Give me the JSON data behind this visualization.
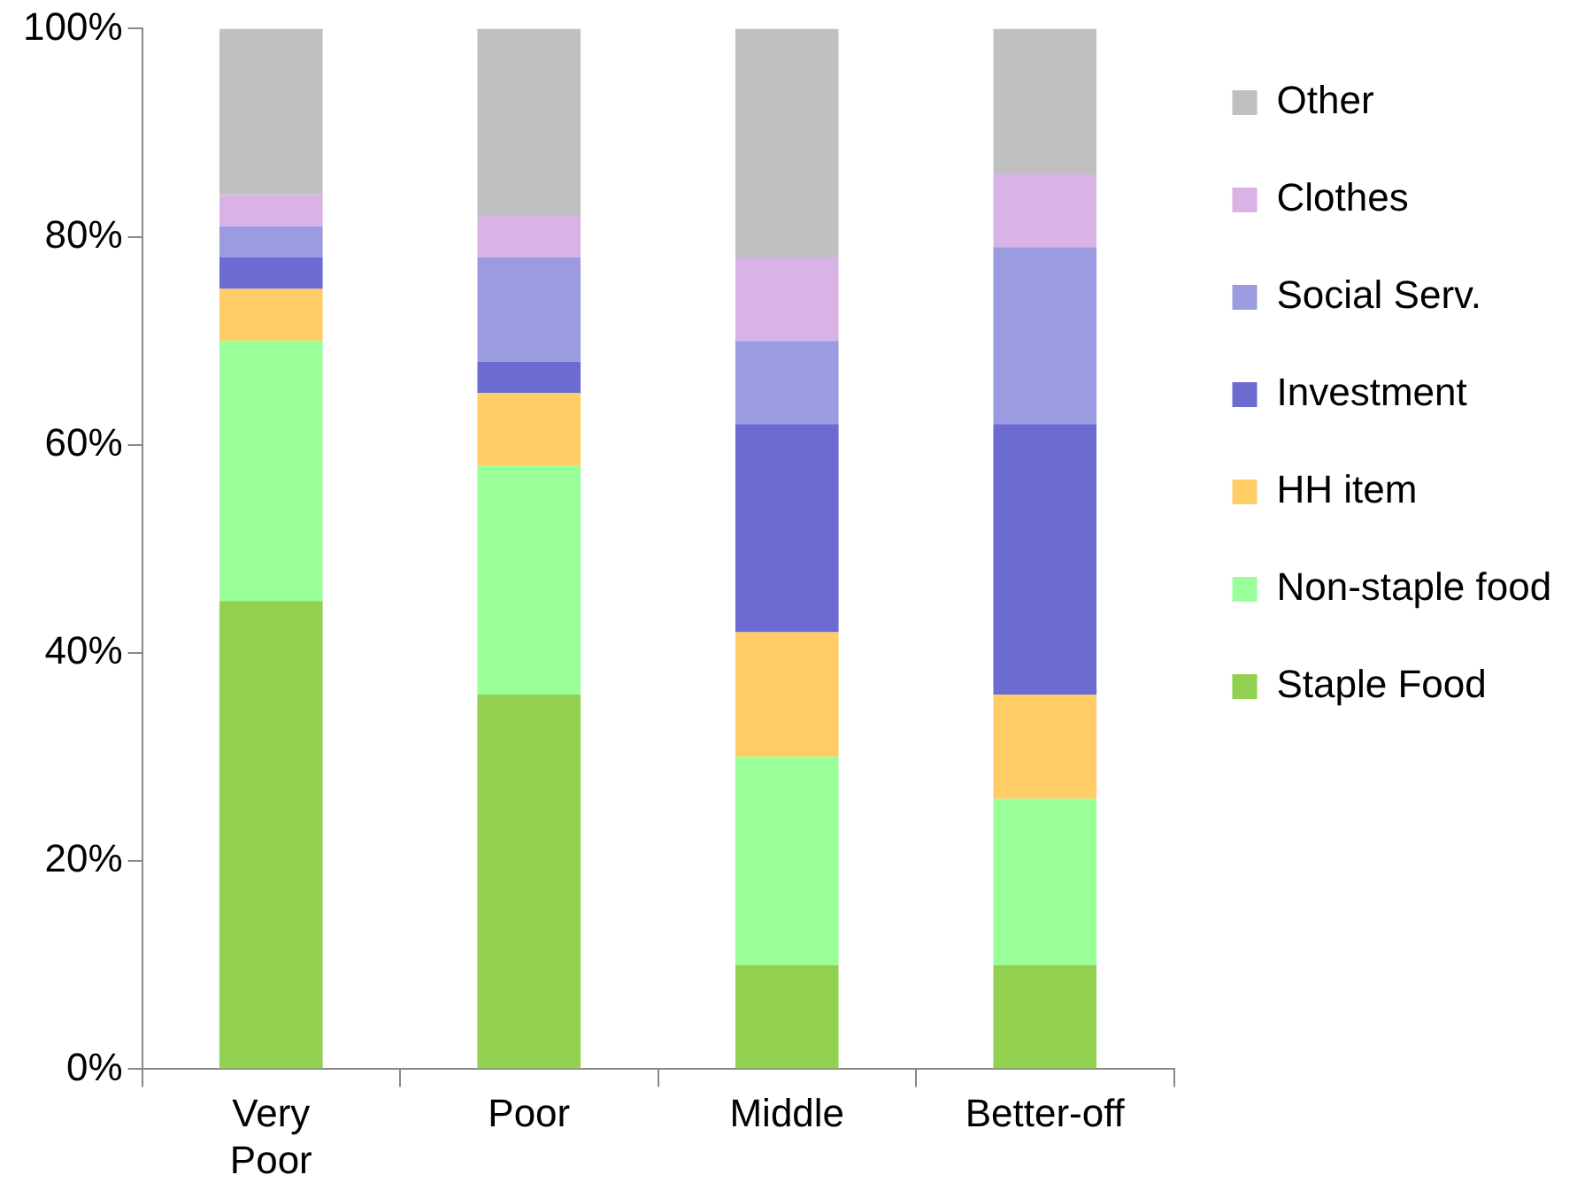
{
  "chart_data": {
    "type": "bar",
    "stacked": true,
    "categories": [
      "Very Poor",
      "Poor",
      "Middle",
      "Better-off"
    ],
    "series": [
      {
        "name": "Staple Food",
        "color": "#92d050",
        "values": [
          45,
          36,
          10,
          10
        ]
      },
      {
        "name": "Non-staple food",
        "color": "#99ff99",
        "values": [
          25,
          22,
          20,
          16
        ]
      },
      {
        "name": "HH item",
        "color": "#ffcc66",
        "values": [
          5,
          7,
          12,
          10
        ]
      },
      {
        "name": "Investment",
        "color": "#6b6bd1",
        "values": [
          3,
          3,
          20,
          26
        ]
      },
      {
        "name": "Social Serv.",
        "color": "#9b9bdf",
        "values": [
          3,
          10,
          8,
          17
        ]
      },
      {
        "name": "Clothes",
        "color": "#d9b3e6",
        "values": [
          3,
          4,
          8,
          7
        ]
      },
      {
        "name": "Other",
        "color": "#c0c0c0",
        "values": [
          16,
          18,
          22,
          14
        ]
      }
    ],
    "ylim": [
      0,
      100
    ],
    "yticks": [
      {
        "value": 0,
        "label": "0%"
      },
      {
        "value": 20,
        "label": "20%"
      },
      {
        "value": 40,
        "label": "40%"
      },
      {
        "value": 60,
        "label": "60%"
      },
      {
        "value": 80,
        "label": "80%"
      },
      {
        "value": 100,
        "label": "100%"
      }
    ],
    "grid": false,
    "legend": "right"
  }
}
